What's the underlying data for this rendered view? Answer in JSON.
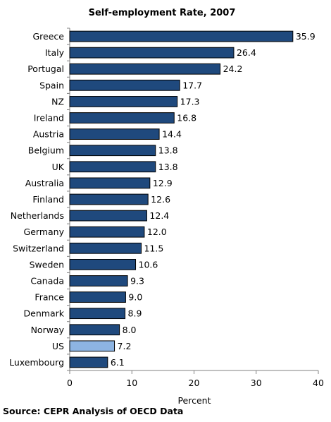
{
  "chart_data": {
    "type": "bar",
    "orientation": "horizontal",
    "title": "Self-employment Rate, 2007",
    "xlabel": "Percent",
    "ylabel": "",
    "xlim": [
      0,
      40
    ],
    "xticks": [
      0,
      10,
      20,
      30,
      40
    ],
    "grid": false,
    "categories": [
      "Greece",
      "Italy",
      "Portugal",
      "Spain",
      "NZ",
      "Ireland",
      "Austria",
      "Belgium",
      "UK",
      "Australia",
      "Finland",
      "Netherlands",
      "Germany",
      "Switzerland",
      "Sweden",
      "Canada",
      "France",
      "Denmark",
      "Norway",
      "US",
      "Luxembourg"
    ],
    "values": [
      35.9,
      26.4,
      24.2,
      17.7,
      17.3,
      16.8,
      14.4,
      13.8,
      13.8,
      12.9,
      12.6,
      12.4,
      12.0,
      11.5,
      10.6,
      9.3,
      9.0,
      8.9,
      8.0,
      7.2,
      6.1
    ],
    "value_labels": [
      "35.9",
      "26.4",
      "24.2",
      "17.7",
      "17.3",
      "16.8",
      "14.4",
      "13.8",
      "13.8",
      "12.9",
      "12.6",
      "12.4",
      "12.0",
      "11.5",
      "10.6",
      "9.3",
      "9.0",
      "8.9",
      "8.0",
      "7.2",
      "6.1"
    ],
    "highlight_category": "US",
    "colors": {
      "bar": "#1f497d",
      "bar_highlight": "#8db4e2",
      "bar_outline": "#000000",
      "axis": "#808080"
    }
  },
  "source": "Source: CEPR Analysis of OECD Data"
}
